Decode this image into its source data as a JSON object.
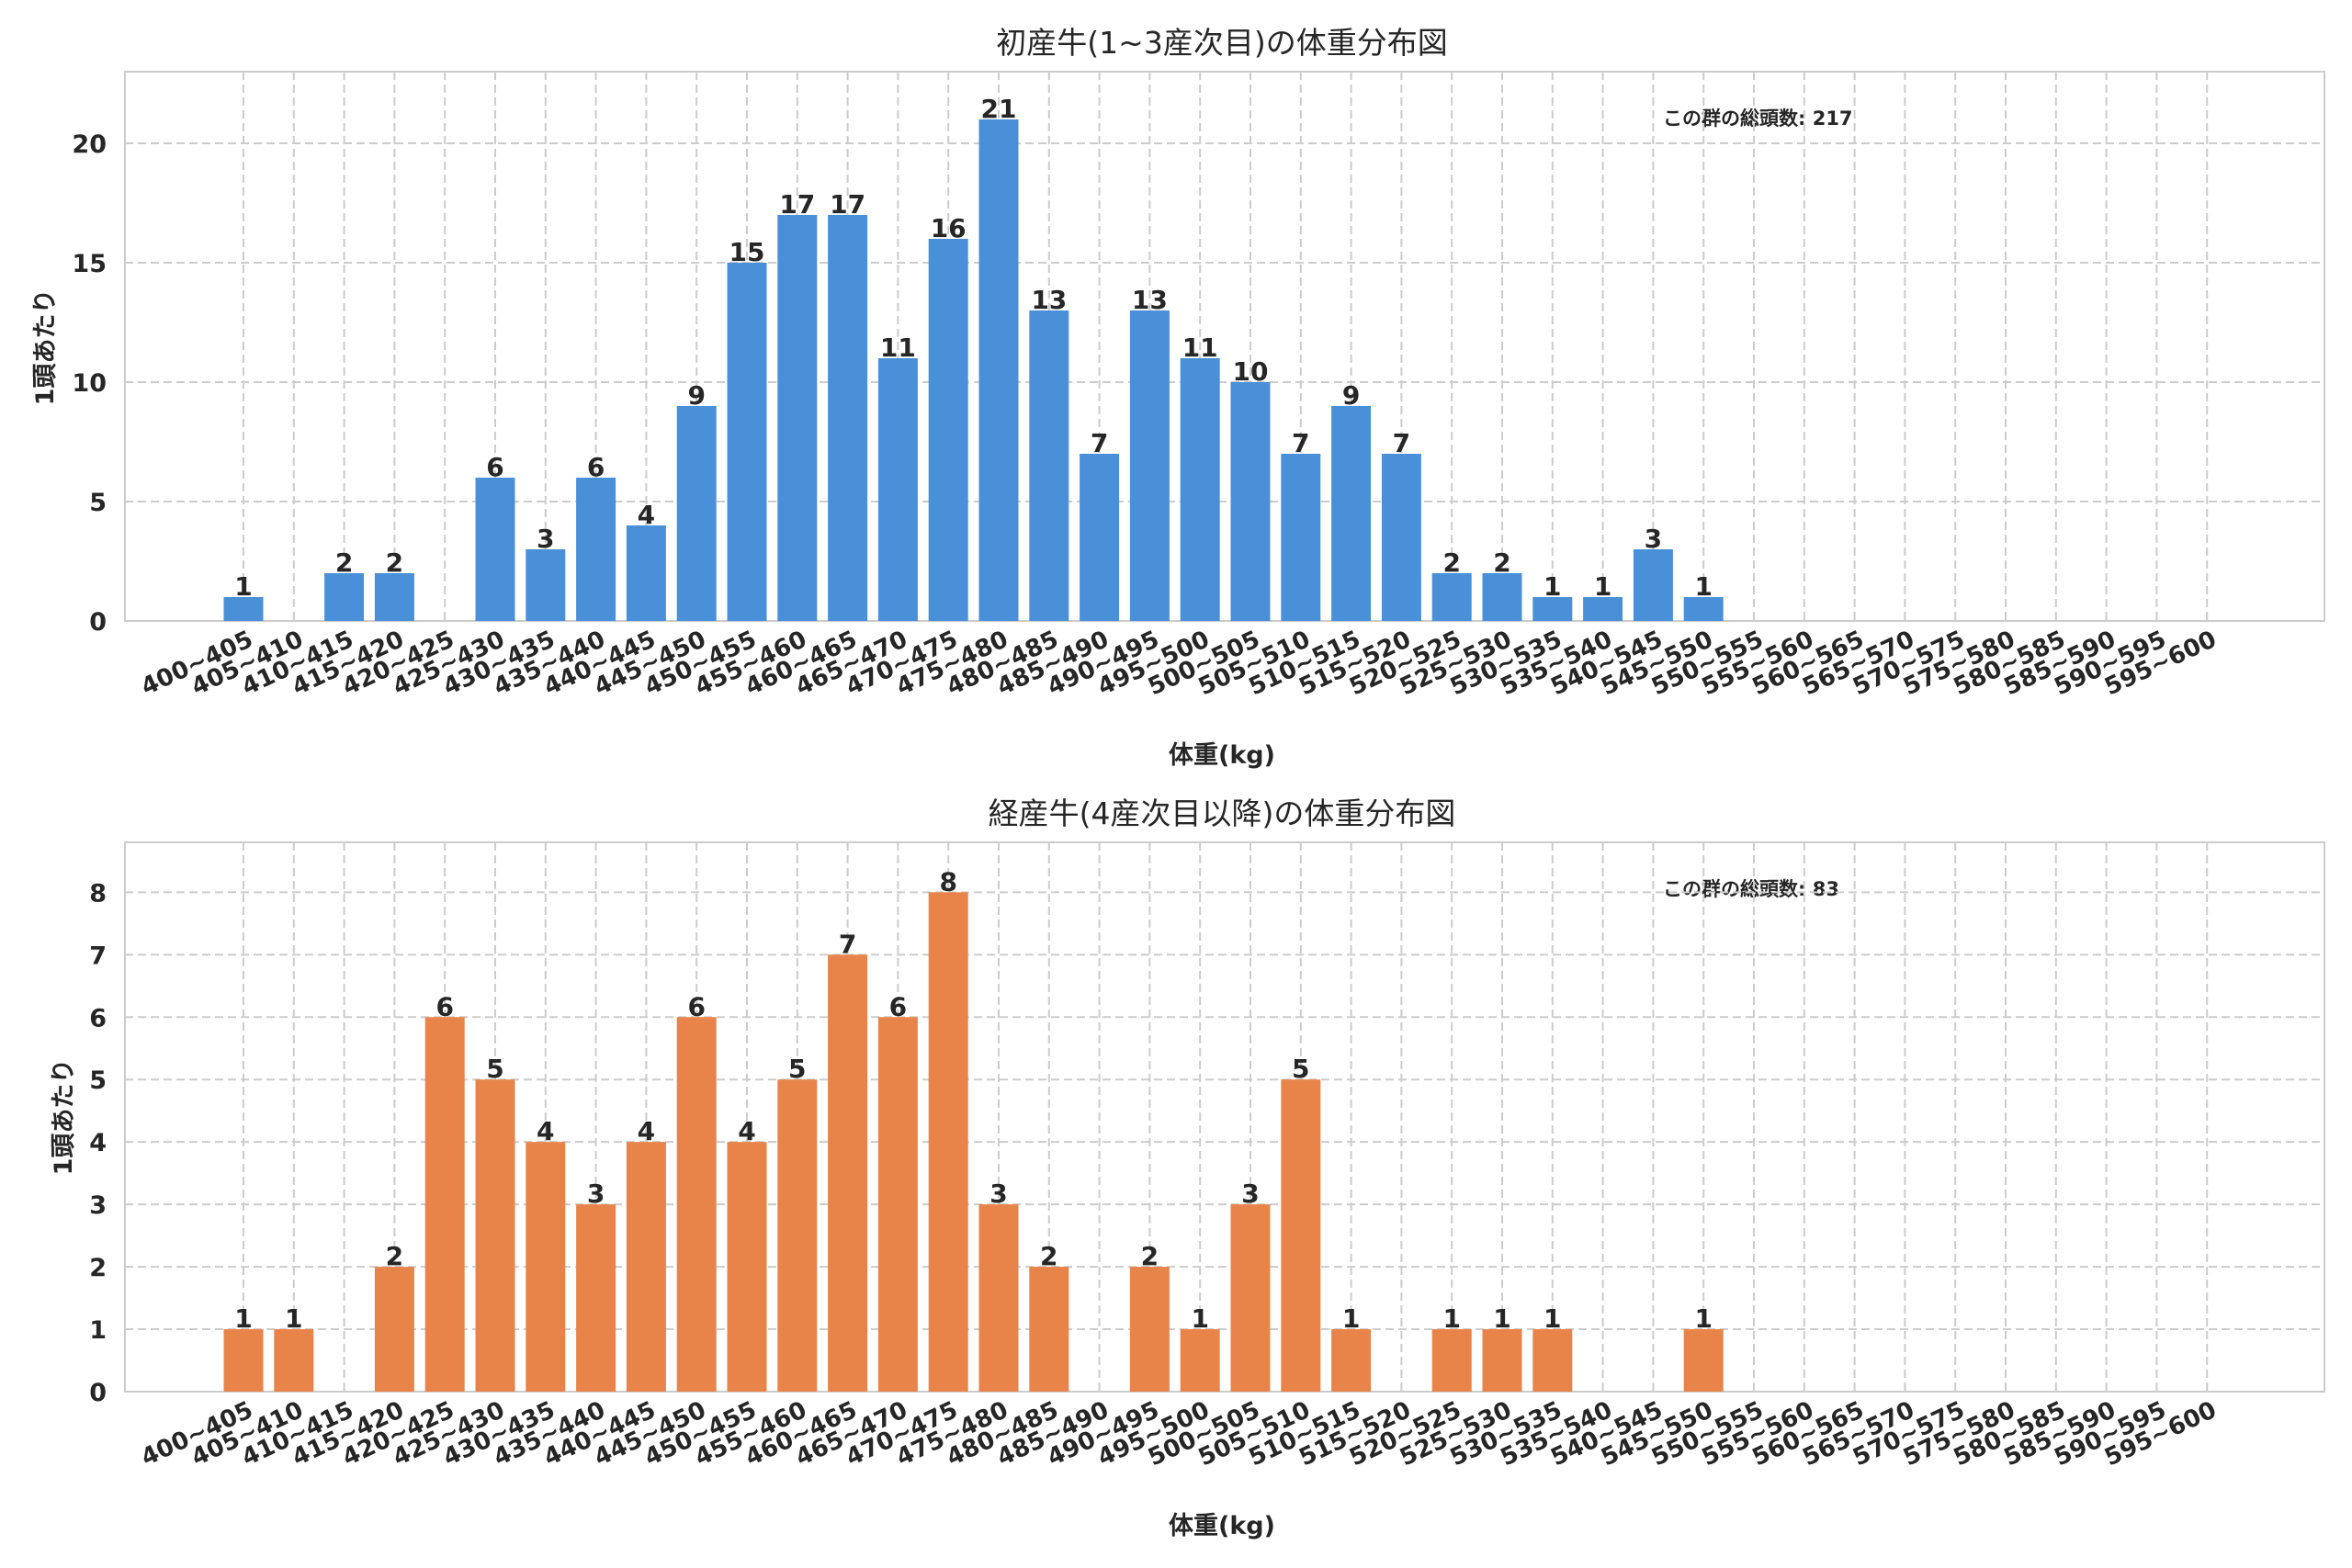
{
  "chart_data": [
    {
      "type": "bar",
      "title": "初産牛(1~3産次目)の体重分布図",
      "xlabel": "体重(kg)",
      "ylabel": "1頭あたり",
      "annotation": "この群の総頭数: 217",
      "ylim": [
        0,
        23
      ],
      "yticks": [
        0,
        5,
        10,
        15,
        20
      ],
      "color": "#4A90D9",
      "categories": [
        "400~405",
        "405~410",
        "410~415",
        "415~420",
        "420~425",
        "425~430",
        "430~435",
        "435~440",
        "440~445",
        "445~450",
        "450~455",
        "455~460",
        "460~465",
        "465~470",
        "470~475",
        "475~480",
        "480~485",
        "485~490",
        "490~495",
        "495~500",
        "500~505",
        "505~510",
        "510~515",
        "515~520",
        "520~525",
        "525~530",
        "530~535",
        "535~540",
        "540~545",
        "545~550",
        "550~555",
        "555~560",
        "560~565",
        "565~570",
        "570~575",
        "575~580",
        "580~585",
        "585~590",
        "590~595",
        "595~600"
      ],
      "values": [
        1,
        0,
        2,
        2,
        0,
        6,
        3,
        6,
        4,
        9,
        15,
        17,
        17,
        11,
        16,
        21,
        13,
        7,
        13,
        11,
        10,
        7,
        9,
        7,
        2,
        2,
        1,
        1,
        3,
        1,
        0,
        0,
        0,
        0,
        0,
        0,
        0,
        0,
        0,
        0
      ]
    },
    {
      "type": "bar",
      "title": "経産牛(4産次目以降)の体重分布図",
      "xlabel": "体重(kg)",
      "ylabel": "1頭あたり",
      "annotation": "この群の総頭数: 83",
      "ylim": [
        0,
        8.8
      ],
      "yticks": [
        0,
        1,
        2,
        3,
        4,
        5,
        6,
        7,
        8
      ],
      "color": "#E8844A",
      "categories": [
        "400~405",
        "405~410",
        "410~415",
        "415~420",
        "420~425",
        "425~430",
        "430~435",
        "435~440",
        "440~445",
        "445~450",
        "450~455",
        "455~460",
        "460~465",
        "465~470",
        "470~475",
        "475~480",
        "480~485",
        "485~490",
        "490~495",
        "495~500",
        "500~505",
        "505~510",
        "510~515",
        "515~520",
        "520~525",
        "525~530",
        "530~535",
        "535~540",
        "540~545",
        "545~550",
        "550~555",
        "555~560",
        "560~565",
        "565~570",
        "570~575",
        "575~580",
        "580~585",
        "585~590",
        "590~595",
        "595~600"
      ],
      "values": [
        1,
        1,
        0,
        2,
        6,
        5,
        4,
        3,
        4,
        6,
        4,
        5,
        7,
        6,
        8,
        3,
        2,
        0,
        2,
        1,
        3,
        5,
        1,
        0,
        1,
        1,
        1,
        0,
        0,
        1,
        0,
        0,
        0,
        0,
        0,
        0,
        0,
        0,
        0,
        0
      ]
    }
  ]
}
